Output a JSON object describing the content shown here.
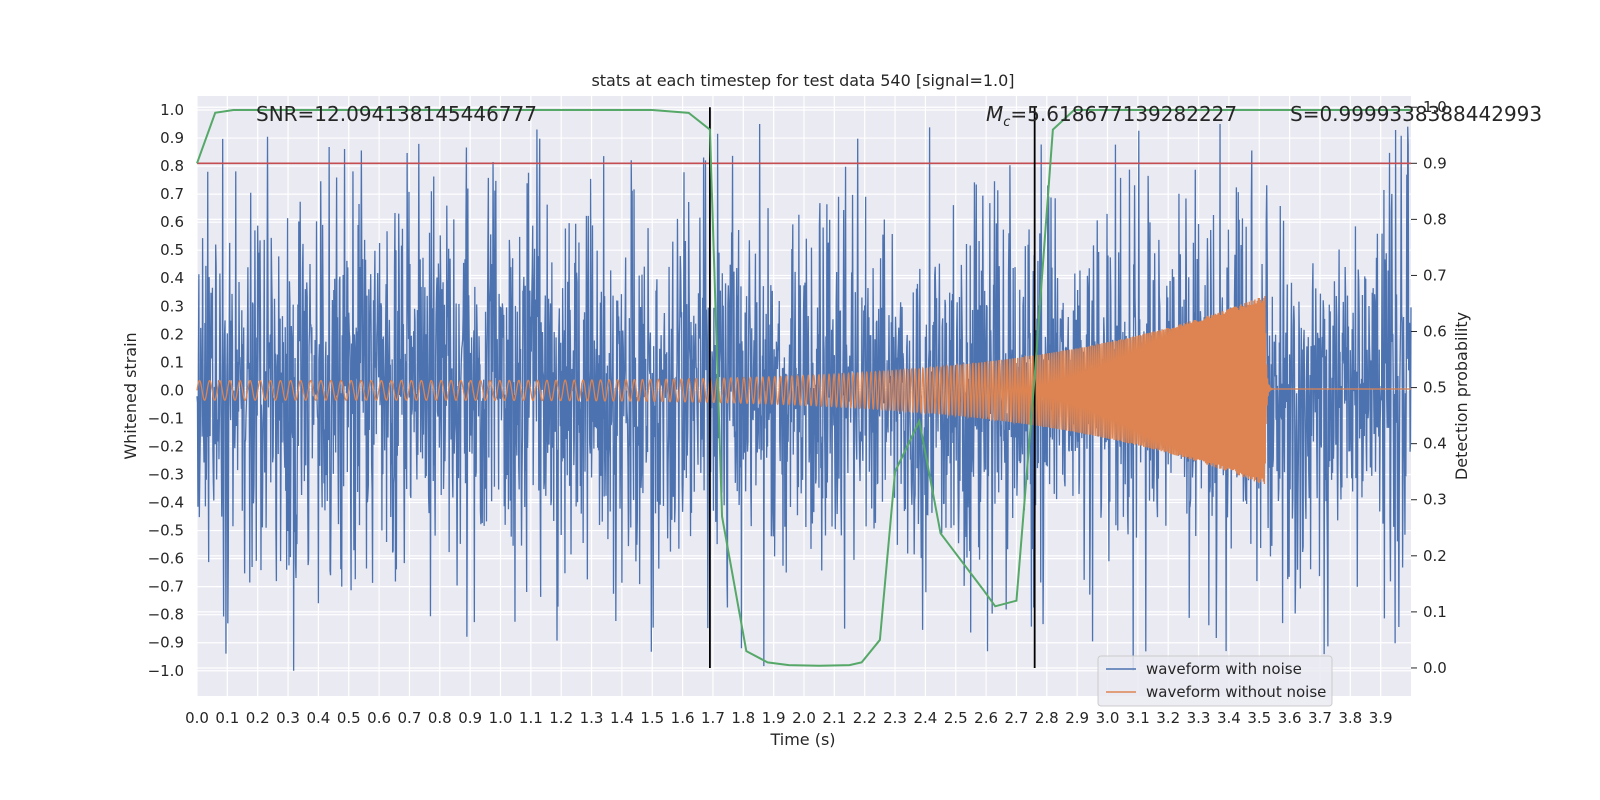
{
  "chart_data": {
    "type": "line",
    "title": "stats at each timestep for test data 540 [signal=1.0]",
    "xlabel": "Time (s)",
    "ylabel": "Whitened strain",
    "y2label": "Detection probability",
    "xlim": [
      0.0,
      4.0
    ],
    "ylim": [
      -1.09,
      1.05
    ],
    "y2lim": [
      -0.05,
      1.02
    ],
    "grid": true,
    "legend_position": "lower-right",
    "x_ticks": [
      "0.0",
      "0.1",
      "0.2",
      "0.3",
      "0.4",
      "0.5",
      "0.6",
      "0.7",
      "0.8",
      "0.9",
      "1.0",
      "1.1",
      "1.2",
      "1.3",
      "1.4",
      "1.5",
      "1.6",
      "1.7",
      "1.8",
      "1.9",
      "2.0",
      "2.1",
      "2.2",
      "2.3",
      "2.4",
      "2.5",
      "2.6",
      "2.7",
      "2.8",
      "2.9",
      "3.0",
      "3.1",
      "3.2",
      "3.3",
      "3.4",
      "3.5",
      "3.6",
      "3.7",
      "3.8",
      "3.9"
    ],
    "y_ticks": [
      "1.0",
      "0.9",
      "0.8",
      "0.7",
      "0.6",
      "0.5",
      "0.4",
      "0.3",
      "0.2",
      "0.1",
      "0.0",
      "−0.1",
      "−0.2",
      "−0.3",
      "−0.4",
      "−0.5",
      "−0.6",
      "−0.7",
      "−0.8",
      "−0.9",
      "−1.0"
    ],
    "y2_ticks": [
      "1.0",
      "0.9",
      "0.8",
      "0.7",
      "0.6",
      "0.5",
      "0.4",
      "0.3",
      "0.2",
      "0.1",
      "0.0"
    ],
    "annotations": {
      "snr": "SNR=12.094138145446777",
      "mc_symbol": "M",
      "mc_sub": "c",
      "mc_value": "=5.618677139282227",
      "s": "S=0.9999338388442993"
    },
    "series": [
      {
        "name": "waveform with noise",
        "color": "#4c72b0",
        "axis": "left",
        "description": "whitened noisy strain, oscillating roughly between -1.0 and 0.95 over 0-4 s"
      },
      {
        "name": "waveform without noise",
        "color": "#dd8452",
        "axis": "left",
        "chirp": {
          "t_start": 0.0,
          "t_merge": 3.52,
          "amp_start": 0.035,
          "amp_merge": 0.34,
          "freq_start_hz": 30,
          "freq_merge_hz": 280,
          "post_merge_level": 0.005
        }
      },
      {
        "name": "detection probability",
        "color": "#55a868",
        "axis": "right",
        "x": [
          0.0,
          0.06,
          0.12,
          0.2,
          0.5,
          1.0,
          1.5,
          1.62,
          1.69,
          1.73,
          1.81,
          1.88,
          1.95,
          2.05,
          2.15,
          2.19,
          2.25,
          2.3,
          2.38,
          2.45,
          2.52,
          2.59,
          2.63,
          2.7,
          2.76,
          2.82,
          2.89,
          3.0,
          3.5,
          4.0
        ],
        "values": [
          0.9,
          0.99,
          0.995,
          0.995,
          0.995,
          0.995,
          0.995,
          0.99,
          0.96,
          0.27,
          0.03,
          0.01,
          0.005,
          0.004,
          0.005,
          0.01,
          0.05,
          0.35,
          0.44,
          0.24,
          0.19,
          0.14,
          0.11,
          0.12,
          0.52,
          0.96,
          0.995,
          0.995,
          0.995,
          0.995
        ]
      }
    ],
    "reference_lines": {
      "threshold_color": "#c44e52",
      "threshold_y2": 0.9,
      "vertical_color": "#000000",
      "vertical_x": [
        1.69,
        2.76
      ]
    }
  }
}
